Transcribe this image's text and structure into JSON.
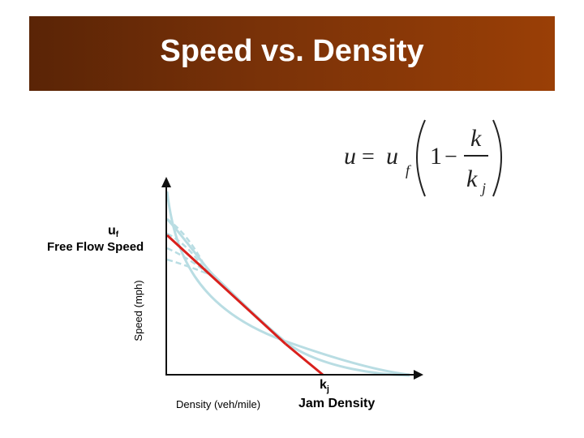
{
  "title": "Speed vs. Density",
  "formula": {
    "lhs": "u",
    "equals": "=",
    "uf_base": "u",
    "uf_sub": "f",
    "one": "1",
    "minus": "−",
    "numerator": "k",
    "denom_base": "k",
    "denom_sub": "j"
  },
  "labels": {
    "uf_base": "u",
    "uf_sub": "f",
    "free_flow_speed": "Free Flow Speed",
    "y_axis": "Speed (mph)",
    "kj_base": "k",
    "kj_sub": "j",
    "x_axis": "Density (veh/mile)",
    "jam_density": "Jam Density"
  },
  "colors": {
    "banner_dark": "#5a2406",
    "banner_light": "#9a3f06",
    "linear_line": "#d9201c",
    "curves": "#b9dde3",
    "axes": "#111111",
    "title_text": "#ffffff"
  }
}
